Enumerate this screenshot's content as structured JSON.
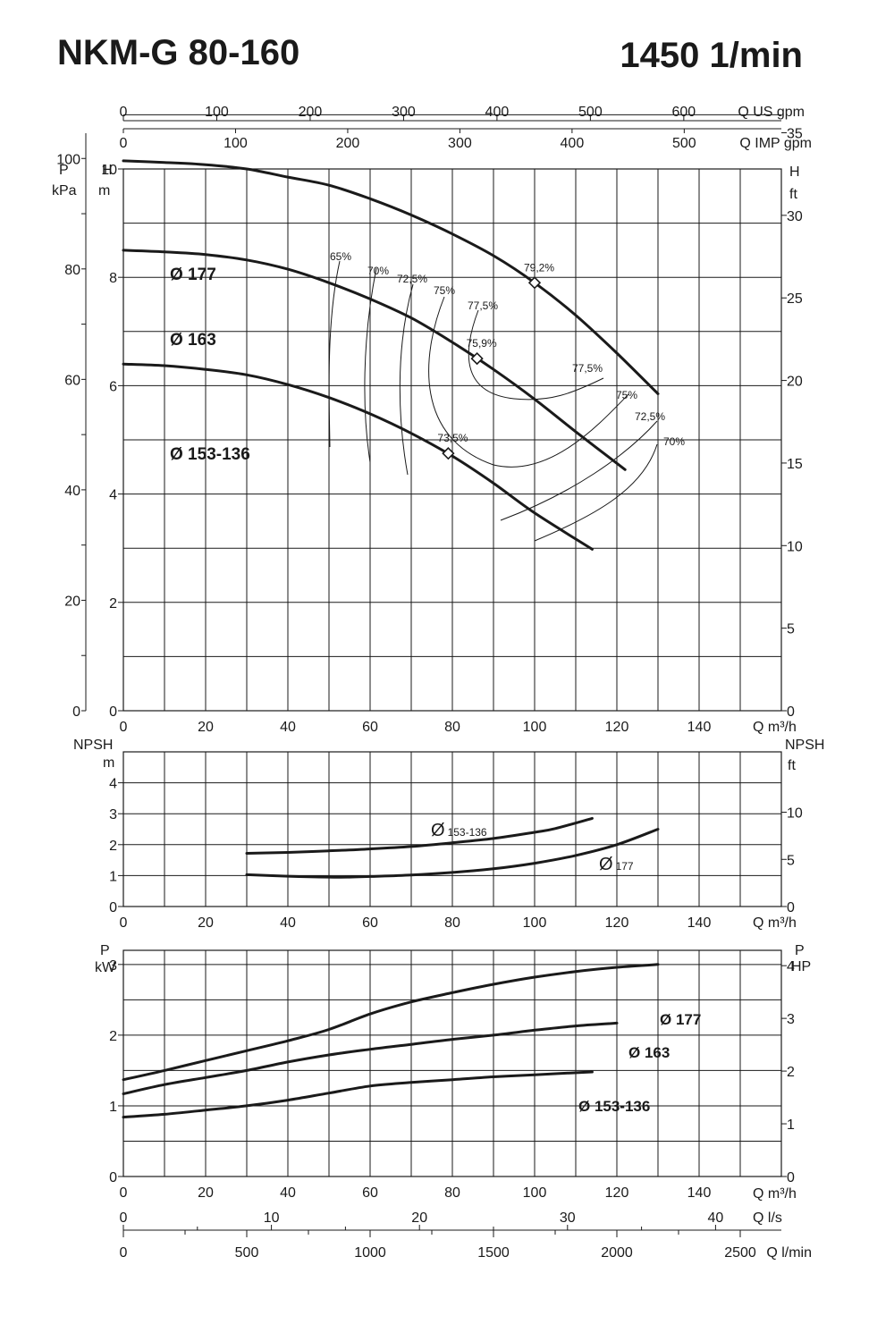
{
  "header": {
    "model": "NKM-G 80-160",
    "speed": "1450 1/min"
  },
  "chart_data": [
    {
      "name": "head",
      "type": "line",
      "xlabel": "Q m³/h",
      "xlim": [
        0,
        160
      ],
      "xticks": [
        0,
        20,
        40,
        60,
        80,
        100,
        120,
        140
      ],
      "ylabel": "H m",
      "ylim": [
        0,
        10
      ],
      "yticks": [
        0,
        2,
        4,
        6,
        8,
        10
      ],
      "y_label_left_outer": "P kPa",
      "y_ticks_left_outer": [
        0,
        20,
        40,
        60,
        80,
        100
      ],
      "y_label_right": "H ft",
      "y_ticks_right": [
        0,
        5,
        10,
        15,
        20,
        25,
        30,
        35
      ],
      "top_axes": [
        {
          "label": "Q US gpm",
          "ticks": [
            0,
            100,
            200,
            300,
            400,
            500,
            600
          ],
          "gpm_per_m3h": 4.4029
        },
        {
          "label": "Q IMP gpm",
          "ticks": [
            0,
            100,
            200,
            300,
            400,
            500
          ],
          "gpm_per_m3h": 3.6662
        }
      ],
      "series": [
        {
          "name": "Ø 177",
          "x": [
            0,
            10,
            20,
            30,
            40,
            50,
            60,
            70,
            80,
            90,
            100,
            110,
            120,
            130
          ],
          "y": [
            10.15,
            10.12,
            10.08,
            10.0,
            9.85,
            9.7,
            9.45,
            9.15,
            8.8,
            8.4,
            7.9,
            7.3,
            6.6,
            5.85
          ]
        },
        {
          "name": "Ø 163",
          "x": [
            0,
            10,
            20,
            30,
            40,
            50,
            60,
            70,
            80,
            90,
            100,
            110,
            122
          ],
          "y": [
            8.5,
            8.47,
            8.42,
            8.32,
            8.15,
            7.9,
            7.6,
            7.25,
            6.8,
            6.3,
            5.75,
            5.15,
            4.45
          ]
        },
        {
          "name": "Ø 153-136",
          "x": [
            0,
            10,
            20,
            30,
            40,
            50,
            60,
            70,
            80,
            90,
            100,
            114
          ],
          "y": [
            6.4,
            6.37,
            6.3,
            6.2,
            6.02,
            5.78,
            5.48,
            5.12,
            4.7,
            4.2,
            3.65,
            2.98
          ]
        }
      ],
      "bep_points": [
        {
          "label": "79,2%",
          "x": 100,
          "y": 7.9
        },
        {
          "label": "75,9%",
          "x": 86,
          "y": 6.5
        },
        {
          "label": "73,5%",
          "x": 79,
          "y": 4.75
        }
      ],
      "efficiency_labels": [
        "65%",
        "70%",
        "72,5%",
        "75%",
        "77,5%",
        "77,5%",
        "75%",
        "72,5%",
        "70%"
      ]
    },
    {
      "name": "npsh",
      "type": "line",
      "xlabel": "Q m³/h",
      "xlim": [
        0,
        160
      ],
      "xticks": [
        0,
        20,
        40,
        60,
        80,
        100,
        120,
        140
      ],
      "ylabel": "NPSH m",
      "ylim": [
        0,
        5
      ],
      "yticks": [
        0,
        1,
        2,
        3,
        4
      ],
      "y_label_right": "NPSH ft",
      "y_ticks_right": [
        0,
        5,
        10
      ],
      "series": [
        {
          "name": "Ø 153-136",
          "x": [
            30,
            40,
            50,
            60,
            70,
            80,
            90,
            100,
            105,
            114
          ],
          "y": [
            1.72,
            1.75,
            1.8,
            1.86,
            1.94,
            2.06,
            2.2,
            2.4,
            2.52,
            2.85
          ]
        },
        {
          "name": "Ø 177",
          "x": [
            30,
            40,
            50,
            55,
            60,
            70,
            80,
            90,
            100,
            110,
            120,
            130
          ],
          "y": [
            1.03,
            0.98,
            0.95,
            0.95,
            0.97,
            1.02,
            1.1,
            1.22,
            1.4,
            1.65,
            2.0,
            2.5
          ]
        }
      ],
      "series_labels": {
        "d153": "Ø",
        "d153_sub": "153-136",
        "d177": "Ø",
        "d177_sub": "177"
      }
    },
    {
      "name": "power",
      "type": "line",
      "xlabel": "Q m³/h",
      "xlim": [
        0,
        160
      ],
      "xticks": [
        0,
        20,
        40,
        60,
        80,
        100,
        120,
        140
      ],
      "ylabel": "P kW",
      "ylim": [
        0,
        3.2
      ],
      "yticks": [
        0,
        1,
        2,
        3
      ],
      "y_label_right": "P HP",
      "y_ticks_right": [
        0,
        1,
        2,
        3,
        4
      ],
      "series": [
        {
          "name": "Ø 177",
          "x": [
            0,
            10,
            20,
            30,
            40,
            50,
            60,
            70,
            80,
            90,
            100,
            110,
            120,
            130
          ],
          "y": [
            1.37,
            1.5,
            1.64,
            1.78,
            1.92,
            2.08,
            2.3,
            2.47,
            2.6,
            2.72,
            2.82,
            2.9,
            2.96,
            3.0
          ]
        },
        {
          "name": "Ø 163",
          "x": [
            0,
            10,
            20,
            30,
            40,
            50,
            60,
            70,
            80,
            90,
            100,
            110,
            120
          ],
          "y": [
            1.17,
            1.3,
            1.4,
            1.5,
            1.62,
            1.72,
            1.8,
            1.87,
            1.94,
            2.0,
            2.07,
            2.13,
            2.17
          ]
        },
        {
          "name": "Ø 153-136",
          "x": [
            0,
            10,
            20,
            30,
            40,
            50,
            60,
            70,
            80,
            90,
            100,
            114
          ],
          "y": [
            0.84,
            0.88,
            0.94,
            1.0,
            1.08,
            1.18,
            1.28,
            1.33,
            1.37,
            1.41,
            1.44,
            1.48
          ]
        }
      ]
    }
  ],
  "bottom_axes": [
    {
      "label": "Q l/s",
      "ticks": [
        0,
        10,
        20,
        30,
        40
      ],
      "minor_ticks": [
        5,
        15,
        25,
        35,
        45
      ],
      "per_m3h": 0.27778
    },
    {
      "label": "Q l/min",
      "ticks": [
        0,
        500,
        1000,
        1500,
        2000,
        2500
      ],
      "minor_ticks": [
        250,
        750,
        1250,
        1750,
        2250
      ],
      "per_m3h": 16.6667
    }
  ]
}
